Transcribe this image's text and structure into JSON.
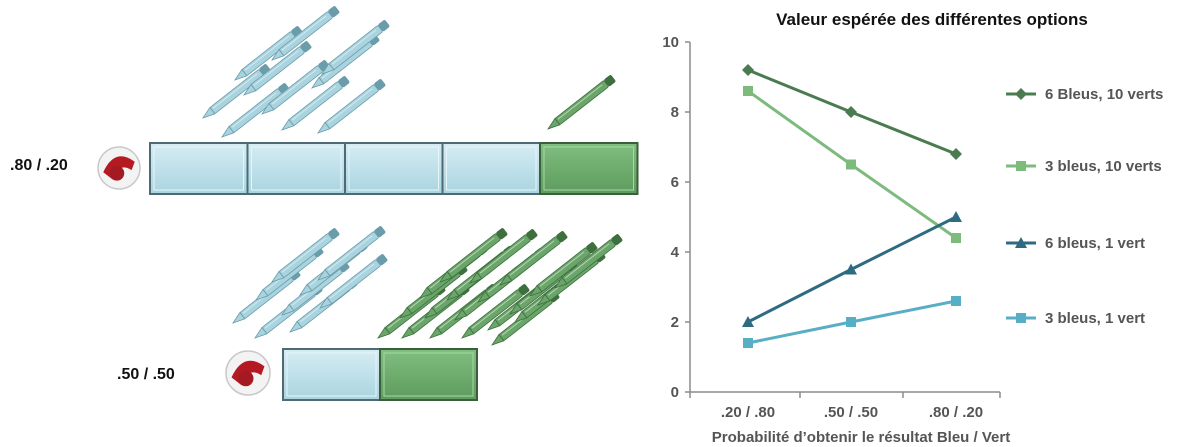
{
  "left_panel": {
    "row1_label": ".80 / .20",
    "row1_blue_segments": 4,
    "row1_green_segments": 1,
    "row2_label": ".50 / .50",
    "row2_blue_segments": 1,
    "row2_green_segments": 1,
    "colors": {
      "blue": "#a9d4e0",
      "green": "#5e9b5e",
      "pen_blue": "#a8d3df",
      "pen_green": "#6aa56a"
    }
  },
  "chart_data": {
    "type": "line",
    "title": "Valeur espérée des différentes options",
    "xlabel": "Probabilité d’obtenir le résultat Bleu / Vert",
    "ylabel": "",
    "categories": [
      ".20 / .80",
      ".50 / .50",
      ".80 / .20"
    ],
    "ylim": [
      0,
      10
    ],
    "yticks": [
      0,
      2,
      4,
      6,
      8,
      10
    ],
    "grid": false,
    "legend_position": "right",
    "series": [
      {
        "name": "6 Bleus, 10 verts",
        "values": [
          9.2,
          8.0,
          6.8
        ],
        "color": "#4a7c50",
        "marker": "diamond"
      },
      {
        "name": "3 bleus, 10 verts",
        "values": [
          8.6,
          6.5,
          4.4
        ],
        "color": "#7dbb7d",
        "marker": "square"
      },
      {
        "name": "6 bleus, 1 vert",
        "values": [
          2.0,
          3.5,
          5.0
        ],
        "color": "#2e6b80",
        "marker": "triangle"
      },
      {
        "name": "3 bleus, 1 vert",
        "values": [
          1.4,
          2.0,
          2.6
        ],
        "color": "#58aec4",
        "marker": "square"
      }
    ]
  }
}
